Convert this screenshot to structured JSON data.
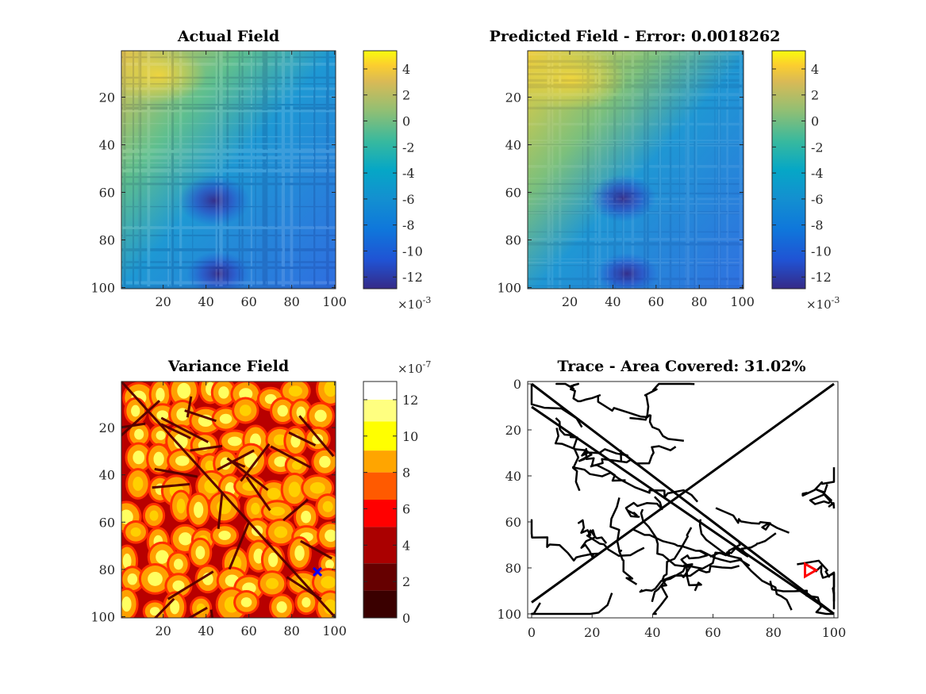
{
  "figure": {
    "panels": [
      {
        "id": "actual",
        "title": "Actual Field",
        "xticks": [
          "20",
          "40",
          "60",
          "80",
          "100"
        ],
        "yticks": [
          "20",
          "40",
          "60",
          "80",
          "100"
        ],
        "colorbar": {
          "ticks": [
            "4",
            "2",
            "0",
            "-2",
            "-4",
            "-6",
            "-8",
            "-10",
            "-12"
          ],
          "exponent_base": "×10",
          "exponent_power": "-3",
          "colormap": "parula"
        }
      },
      {
        "id": "predicted",
        "title": "Predicted Field - Error: 0.0018262",
        "xticks": [
          "20",
          "40",
          "60",
          "80",
          "100"
        ],
        "yticks": [
          "20",
          "40",
          "60",
          "80",
          "100"
        ],
        "colorbar": {
          "ticks": [
            "4",
            "2",
            "0",
            "-2",
            "-4",
            "-6",
            "-8",
            "-10",
            "-12"
          ],
          "exponent_base": "×10",
          "exponent_power": "-3",
          "colormap": "parula"
        }
      },
      {
        "id": "variance",
        "title": "Variance Field",
        "xticks": [
          "20",
          "40",
          "60",
          "80",
          "100"
        ],
        "yticks": [
          "20",
          "40",
          "60",
          "80",
          "100"
        ],
        "colorbar": {
          "ticks": [
            "12",
            "10",
            "8",
            "6",
            "4",
            "2",
            "0"
          ],
          "exponent_base": "×10",
          "exponent_power": "-7",
          "colormap": "hot",
          "levels": [
            "#ffffff",
            "#ffff80",
            "#ffff00",
            "#ffa500",
            "#ff5a00",
            "#ff0000",
            "#aa0000",
            "#660000",
            "#3a0000"
          ]
        },
        "marker": {
          "symbol": "x",
          "color": "#0000ff",
          "x": 92,
          "y": 81
        }
      },
      {
        "id": "trace",
        "title": "Trace - Area Covered: 31.02%",
        "xticks": [
          "0",
          "20",
          "40",
          "60",
          "80",
          "100"
        ],
        "yticks": [
          "0",
          "20",
          "40",
          "60",
          "80",
          "100"
        ],
        "marker": {
          "symbol": "triangle-right",
          "color": "#ff0000",
          "x": 92,
          "y": 81
        }
      }
    ]
  },
  "chart_data": [
    {
      "type": "heatmap",
      "title": "Actual Field",
      "xlim": [
        1,
        100
      ],
      "ylim": [
        1,
        100
      ],
      "y_direction": "reversed",
      "color_range": [
        -0.012,
        0.005
      ],
      "colormap": "parula",
      "grid": false,
      "description_values": {
        "top_left_region": 0.003,
        "bottom_center_minimum": {
          "x": 43,
          "y": 64,
          "value": -0.012
        },
        "right_side": -0.006
      }
    },
    {
      "type": "heatmap",
      "title": "Predicted Field - Error: 0.0018262",
      "xlim": [
        1,
        100
      ],
      "ylim": [
        1,
        100
      ],
      "y_direction": "reversed",
      "color_range": [
        -0.012,
        0.005
      ],
      "colormap": "parula",
      "grid": false,
      "description_values": {
        "top_left_region": 0.004,
        "bottom_center_minimum": {
          "x": 44,
          "y": 63,
          "value": -0.012
        },
        "right_side": -0.005
      }
    },
    {
      "type": "heatmap",
      "title": "Variance Field",
      "xlim": [
        1,
        100
      ],
      "ylim": [
        1,
        100
      ],
      "y_direction": "reversed",
      "color_range": [
        0,
        1.3e-06
      ],
      "colormap": "hot",
      "grid": false
    },
    {
      "type": "line",
      "title": "Trace - Area Covered: 31.02%",
      "xlim": [
        0,
        100
      ],
      "ylim": [
        0,
        100
      ],
      "y_direction": "reversed",
      "grid": false,
      "series": [
        {
          "color": "#000000",
          "x": [
            0,
            100
          ],
          "y": [
            0,
            100
          ]
        },
        {
          "color": "#000000",
          "x": [
            0,
            100
          ],
          "y": [
            10,
            100
          ]
        },
        {
          "color": "#000000",
          "x": [
            100,
            0
          ],
          "y": [
            0,
            95
          ]
        }
      ],
      "marker": {
        "x": 92,
        "y": 81
      }
    }
  ]
}
